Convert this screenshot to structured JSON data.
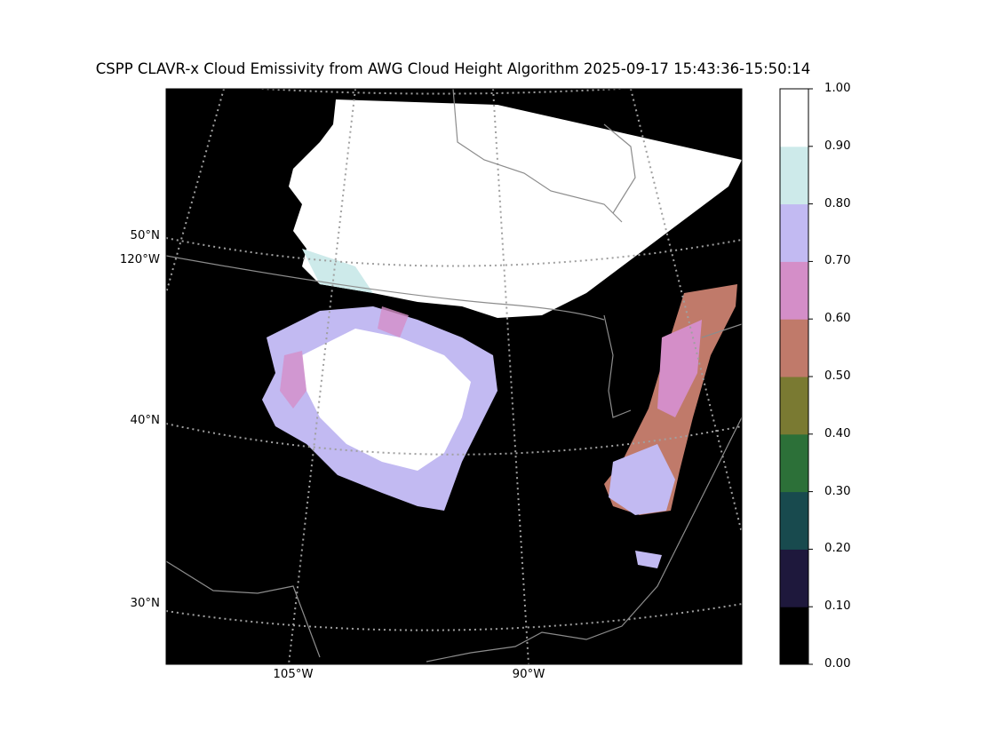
{
  "title": "CSPP CLAVR-x Cloud Emissivity from AWG Cloud Height Algorithm 2025-09-17 15:43:36-15:50:14",
  "map": {
    "lat_labels": [
      "50°N",
      "40°N",
      "30°N"
    ],
    "lon_labels": [
      "120°W",
      "105°W",
      "90°W"
    ],
    "background_color": "#000000",
    "grid_color": "#a0a0a0",
    "border_color": "#8c8c8c"
  },
  "colorbar": {
    "ticks": [
      "1.00",
      "0.90",
      "0.80",
      "0.70",
      "0.60",
      "0.50",
      "0.40",
      "0.30",
      "0.20",
      "0.10",
      "0.00"
    ],
    "colors": [
      "#000000",
      "#1e183c",
      "#184a4e",
      "#2c7038",
      "#7a7a32",
      "#c07a6a",
      "#d48ec8",
      "#c2baf2",
      "#cdeaea",
      "#ffffff"
    ]
  }
}
